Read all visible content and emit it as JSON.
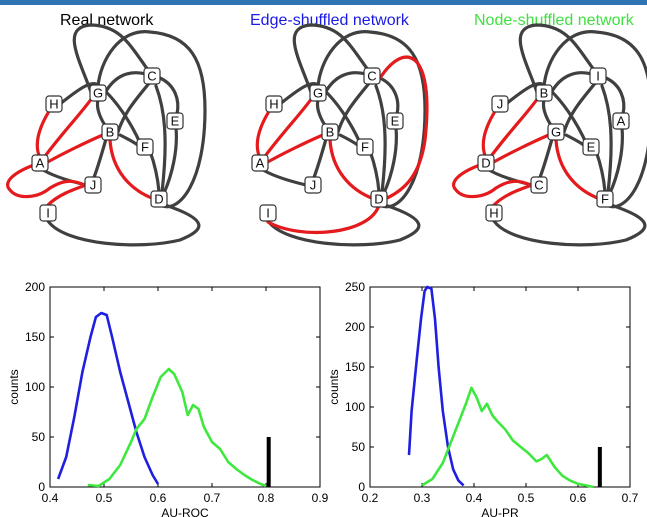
{
  "colors": {
    "top_bar": "#2f74b5",
    "edge_default": "#404040",
    "edge_highlight": "#e41a1c",
    "node_fill": "#ffffff",
    "node_stroke": "#333333",
    "series_blue": "#1f1fe0",
    "series_green": "#3ee83e",
    "marker_black": "#000000"
  },
  "networks": [
    {
      "title": "Real network",
      "title_color": "#000000",
      "nodes": [
        "A",
        "B",
        "C",
        "D",
        "E",
        "F",
        "G",
        "H",
        "I",
        "J"
      ]
    },
    {
      "title": "Edge-shuffled network",
      "title_color": "#1a1ae6",
      "nodes": [
        "A",
        "B",
        "C",
        "D",
        "E",
        "F",
        "G",
        "H",
        "I",
        "J"
      ]
    },
    {
      "title": "Node-shuffled network",
      "title_color": "#3fe03f",
      "nodes": [
        "D",
        "G",
        "I",
        "F",
        "A",
        "E",
        "B",
        "J",
        "H",
        "C"
      ]
    }
  ],
  "chart_data": [
    {
      "type": "line",
      "xlabel": "AU-ROC",
      "ylabel": "counts",
      "xlim": [
        0.4,
        0.9
      ],
      "ylim": [
        0,
        200
      ],
      "xticks": [
        "0.4",
        "0.5",
        "0.6",
        "0.7",
        "0.8",
        "0.9"
      ],
      "yticks": [
        "0",
        "50",
        "100",
        "150",
        "200"
      ],
      "series": [
        {
          "color": "#1f1fe0",
          "points": [
            [
              0.415,
              8
            ],
            [
              0.43,
              30
            ],
            [
              0.445,
              70
            ],
            [
              0.46,
              115
            ],
            [
              0.475,
              150
            ],
            [
              0.485,
              170
            ],
            [
              0.495,
              174
            ],
            [
              0.505,
              172
            ],
            [
              0.515,
              150
            ],
            [
              0.53,
              115
            ],
            [
              0.545,
              85
            ],
            [
              0.56,
              55
            ],
            [
              0.575,
              30
            ],
            [
              0.59,
              12
            ],
            [
              0.6,
              3
            ]
          ]
        },
        {
          "color": "#3ee83e",
          "points": [
            [
              0.47,
              2
            ],
            [
              0.49,
              1
            ],
            [
              0.51,
              8
            ],
            [
              0.53,
              22
            ],
            [
              0.55,
              45
            ],
            [
              0.56,
              58
            ],
            [
              0.575,
              68
            ],
            [
              0.59,
              90
            ],
            [
              0.605,
              110
            ],
            [
              0.62,
              118
            ],
            [
              0.63,
              113
            ],
            [
              0.645,
              95
            ],
            [
              0.655,
              72
            ],
            [
              0.665,
              82
            ],
            [
              0.675,
              78
            ],
            [
              0.685,
              60
            ],
            [
              0.7,
              45
            ],
            [
              0.715,
              38
            ],
            [
              0.73,
              25
            ],
            [
              0.745,
              18
            ],
            [
              0.76,
              12
            ],
            [
              0.775,
              7
            ],
            [
              0.79,
              3
            ],
            [
              0.8,
              1
            ]
          ]
        }
      ],
      "marker": {
        "x": 0.805,
        "height": 50
      }
    },
    {
      "type": "line",
      "xlabel": "AU-PR",
      "ylabel": "counts",
      "xlim": [
        0.2,
        0.7
      ],
      "ylim": [
        0,
        250
      ],
      "xticks": [
        "0.2",
        "0.3",
        "0.4",
        "0.5",
        "0.6",
        "0.7"
      ],
      "yticks": [
        "0",
        "50",
        "100",
        "150",
        "200",
        "250"
      ],
      "series": [
        {
          "color": "#1f1fe0",
          "points": [
            [
              0.275,
              40
            ],
            [
              0.28,
              95
            ],
            [
              0.29,
              160
            ],
            [
              0.298,
              210
            ],
            [
              0.305,
              245
            ],
            [
              0.31,
              250
            ],
            [
              0.318,
              248
            ],
            [
              0.325,
              210
            ],
            [
              0.332,
              150
            ],
            [
              0.34,
              95
            ],
            [
              0.35,
              50
            ],
            [
              0.36,
              22
            ],
            [
              0.37,
              8
            ],
            [
              0.38,
              2
            ]
          ]
        },
        {
          "color": "#3ee83e",
          "points": [
            [
              0.3,
              2
            ],
            [
              0.32,
              10
            ],
            [
              0.34,
              30
            ],
            [
              0.355,
              55
            ],
            [
              0.37,
              80
            ],
            [
              0.385,
              105
            ],
            [
              0.395,
              124
            ],
            [
              0.405,
              112
            ],
            [
              0.415,
              95
            ],
            [
              0.425,
              104
            ],
            [
              0.435,
              90
            ],
            [
              0.445,
              82
            ],
            [
              0.46,
              72
            ],
            [
              0.475,
              58
            ],
            [
              0.49,
              50
            ],
            [
              0.505,
              42
            ],
            [
              0.52,
              32
            ],
            [
              0.53,
              35
            ],
            [
              0.54,
              40
            ],
            [
              0.555,
              25
            ],
            [
              0.57,
              14
            ],
            [
              0.585,
              8
            ],
            [
              0.6,
              4
            ],
            [
              0.615,
              2
            ],
            [
              0.63,
              0
            ]
          ]
        }
      ],
      "marker": {
        "x": 0.642,
        "height": 50
      }
    }
  ]
}
